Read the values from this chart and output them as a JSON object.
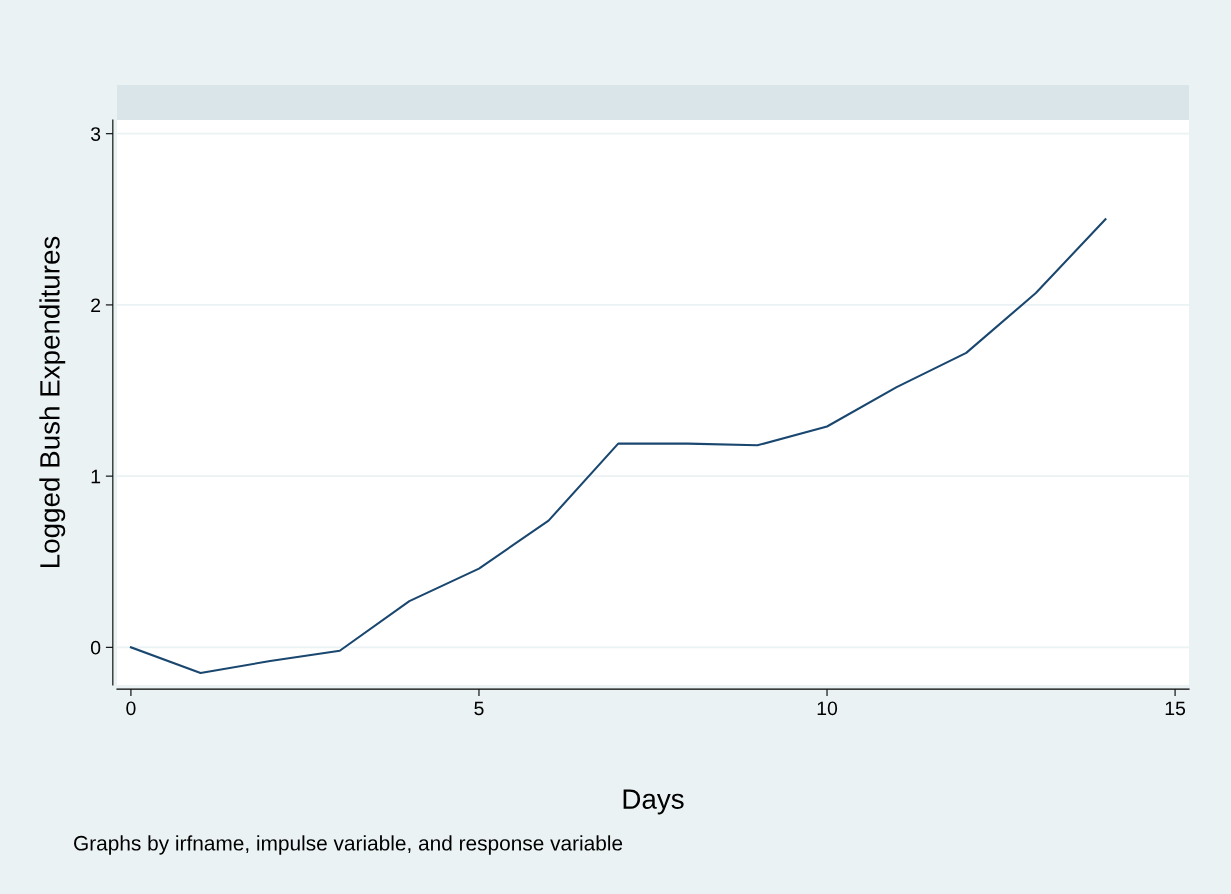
{
  "chart_data": {
    "type": "line",
    "xlabel": "Days",
    "ylabel": "Logged Bush Expenditures",
    "annotations": [
      "Graphs by irfname, impulse variable, and response variable"
    ],
    "x": [
      0,
      1,
      2,
      3,
      4,
      5,
      6,
      7,
      8,
      9,
      10,
      11,
      12,
      13,
      14
    ],
    "series": [
      {
        "color": "#1a476f",
        "values": [
          0,
          -0.15,
          -0.08,
          -0.02,
          0.27,
          0.46,
          0.74,
          1.19,
          1.19,
          1.18,
          1.29,
          1.52,
          1.72,
          2.07,
          2.5
        ]
      }
    ],
    "xlim": [
      -0.2,
      15.2
    ],
    "ylim": [
      -0.22,
      3.08
    ],
    "xticks": [
      0,
      5,
      10,
      15
    ],
    "yticks": [
      0,
      1,
      2,
      3
    ],
    "grid": "y",
    "marker": "none",
    "line_style": "solid"
  }
}
